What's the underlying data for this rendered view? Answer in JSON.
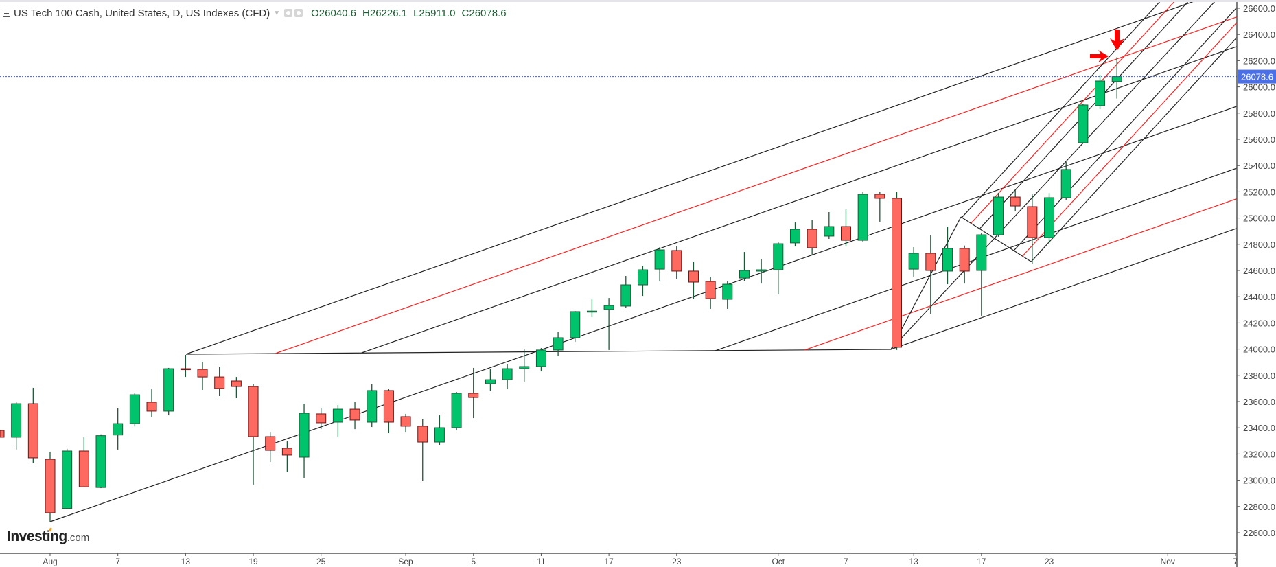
{
  "header": {
    "title": "US Tech 100 Cash, United States, D, US Indexes (CFD)",
    "open": "O26040.6",
    "high": "H26226.1",
    "low": "L25911.0",
    "close": "C26078.6"
  },
  "logo": {
    "main": "Investing",
    "suffix": ".com"
  },
  "colors": {
    "up": "#00c46b",
    "down": "#ff6a60",
    "up_border": "#1b5a38",
    "down_border": "#6b1616",
    "wick": "#1b5a38",
    "price_line": "#3b5fdc",
    "drawing_black": "#222222",
    "drawing_red": "#ff2020",
    "arrow": "#ff0000"
  },
  "chart_data": {
    "type": "candlestick",
    "title": "US Tech 100 Cash, United States, D, US Indexes (CFD)",
    "ylim": [
      22500,
      26650
    ],
    "y_ticks": [
      "26600.0",
      "26400.0",
      "26200.0",
      "26000.0",
      "25800.0",
      "25600.0",
      "25400.0",
      "25200.0",
      "25000.0",
      "24800.0",
      "24600.0",
      "24400.0",
      "24200.0",
      "24000.0",
      "23800.0",
      "23600.0",
      "23400.0",
      "23200.0",
      "23000.0",
      "22800.0",
      "22600.0"
    ],
    "x_ticks": [
      {
        "label": "Aug",
        "index": 0
      },
      {
        "label": "7",
        "index": 4
      },
      {
        "label": "13",
        "index": 8
      },
      {
        "label": "19",
        "index": 12
      },
      {
        "label": "25",
        "index": 16
      },
      {
        "label": "Sep",
        "index": 21
      },
      {
        "label": "5",
        "index": 25
      },
      {
        "label": "11",
        "index": 29
      },
      {
        "label": "17",
        "index": 33
      },
      {
        "label": "23",
        "index": 37
      },
      {
        "label": "Oct",
        "index": 43
      },
      {
        "label": "7",
        "index": 47
      },
      {
        "label": "13",
        "index": 51
      },
      {
        "label": "17",
        "index": 55
      },
      {
        "label": "23",
        "index": 59
      },
      {
        "label": "Nov",
        "index": 66
      },
      {
        "label": "7",
        "index": 70
      }
    ],
    "current_price": "26078.6",
    "candles_columns": [
      "date",
      "open",
      "high",
      "low",
      "close"
    ],
    "candles": [
      [
        "Jul 29",
        23380,
        23420,
        23290,
        23328
      ],
      [
        "Jul 30",
        23328,
        23595,
        23234,
        23584
      ],
      [
        "Jul 31",
        23584,
        23705,
        23129,
        23171
      ],
      [
        "Aug 1",
        23160,
        23218,
        22684,
        22752
      ],
      [
        "Aug 4",
        22785,
        23240,
        22780,
        23223
      ],
      [
        "Aug 5",
        23223,
        23328,
        22945,
        22950
      ],
      [
        "Aug 6",
        22945,
        23350,
        22940,
        23340
      ],
      [
        "Aug 7",
        23345,
        23553,
        23234,
        23432
      ],
      [
        "Aug 8",
        23432,
        23665,
        23410,
        23652
      ],
      [
        "Aug 11",
        23595,
        23694,
        23480,
        23527
      ],
      [
        "Aug 12",
        23527,
        23857,
        23495,
        23851
      ],
      [
        "Aug 13",
        23851,
        23956,
        23788,
        23845
      ],
      [
        "Aug 14",
        23846,
        23904,
        23689,
        23788
      ],
      [
        "Aug 15",
        23788,
        23862,
        23642,
        23700
      ],
      [
        "Aug 18",
        23757,
        23788,
        23626,
        23715
      ],
      [
        "Aug 19",
        23715,
        23731,
        22966,
        23333
      ],
      [
        "Aug 20",
        23333,
        23364,
        23139,
        23228
      ],
      [
        "Aug 21",
        23244,
        23296,
        23061,
        23192
      ],
      [
        "Aug 22",
        23176,
        23584,
        23019,
        23511
      ],
      [
        "Aug 25",
        23506,
        23553,
        23390,
        23438
      ],
      [
        "Aug 26",
        23443,
        23574,
        23328,
        23542
      ],
      [
        "Aug 27",
        23542,
        23595,
        23390,
        23459
      ],
      [
        "Aug 28",
        23443,
        23731,
        23406,
        23684
      ],
      [
        "Aug 29",
        23684,
        23694,
        23359,
        23443
      ],
      [
        "Sep 1",
        23485,
        23506,
        23364,
        23412
      ],
      [
        "Sep 2",
        23412,
        23469,
        22993,
        23291
      ],
      [
        "Sep 3",
        23291,
        23495,
        23270,
        23401
      ],
      [
        "Sep 4",
        23401,
        23673,
        23380,
        23663
      ],
      [
        "Sep 5",
        23663,
        23857,
        23474,
        23631
      ],
      [
        "Sep 8",
        23736,
        23846,
        23684,
        23767
      ],
      [
        "Sep 9",
        23767,
        23883,
        23694,
        23851
      ],
      [
        "Sep 10",
        23851,
        23997,
        23752,
        23867
      ],
      [
        "Sep 11",
        23867,
        24008,
        23830,
        23993
      ],
      [
        "Sep 12",
        23993,
        24129,
        23946,
        24087
      ],
      [
        "Sep 15",
        24087,
        24291,
        24055,
        24286
      ],
      [
        "Sep 16",
        24282,
        24385,
        24244,
        24290
      ],
      [
        "Sep 17",
        24302,
        24390,
        23993,
        24333
      ],
      [
        "Sep 18",
        24328,
        24558,
        24312,
        24490
      ],
      [
        "Sep 19",
        24490,
        24636,
        24406,
        24605
      ],
      [
        "Sep 22",
        24610,
        24778,
        24516,
        24757
      ],
      [
        "Sep 23",
        24752,
        24783,
        24537,
        24595
      ],
      [
        "Sep 24",
        24595,
        24668,
        24385,
        24511
      ],
      [
        "Sep 25",
        24516,
        24553,
        24307,
        24385
      ],
      [
        "Sep 26",
        24380,
        24516,
        24307,
        24495
      ],
      [
        "Sep 29",
        24542,
        24741,
        24520,
        24600
      ],
      [
        "Sep 30",
        24595,
        24684,
        24500,
        24605
      ],
      [
        "Oct 1",
        24605,
        24815,
        24417,
        24804
      ],
      [
        "Oct 2",
        24810,
        24966,
        24783,
        24914
      ],
      [
        "Oct 3",
        24914,
        24987,
        24715,
        24773
      ],
      [
        "Oct 6",
        24862,
        25045,
        24841,
        24935
      ],
      [
        "Oct 7",
        24935,
        25066,
        24783,
        24830
      ],
      [
        "Oct 8",
        24830,
        25197,
        24820,
        25181
      ],
      [
        "Oct 9",
        25181,
        25200,
        24972,
        25150
      ],
      [
        "Oct 10",
        25150,
        25197,
        23993,
        24014
      ],
      [
        "Oct 13",
        24610,
        24778,
        24553,
        24731
      ],
      [
        "Oct 14",
        24731,
        24867,
        24265,
        24600
      ],
      [
        "Oct 15",
        24595,
        24935,
        24495,
        24768
      ],
      [
        "Oct 16",
        24768,
        24790,
        24500,
        24595
      ],
      [
        "Oct 17",
        24600,
        24883,
        24255,
        24872
      ],
      [
        "Oct 20",
        24872,
        25192,
        24857,
        25160
      ],
      [
        "Oct 21",
        25160,
        25213,
        25055,
        25092
      ],
      [
        "Oct 22",
        25087,
        25181,
        24652,
        24851
      ],
      [
        "Oct 23",
        24851,
        25190,
        24810,
        25155
      ],
      [
        "Oct 24",
        25155,
        25427,
        25139,
        25370
      ],
      [
        "Oct 27",
        25574,
        25872,
        25574,
        25862
      ],
      [
        "Oct 28",
        25857,
        26092,
        25830,
        26045
      ],
      [
        "Oct 29",
        26040.6,
        26226.1,
        25911.0,
        26078.6
      ]
    ],
    "first_index": -3,
    "grid": false
  }
}
